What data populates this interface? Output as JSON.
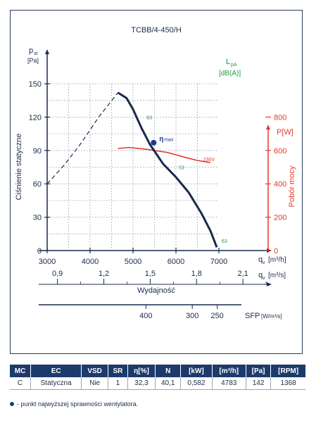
{
  "chart_data": {
    "type": "line",
    "title": "TCBB/4-450/H",
    "x": {
      "label_sym": "q",
      "label_sub": "v",
      "unit": "[m³/h]",
      "min": 3000,
      "max": 7000,
      "ticks": [
        "3000",
        "4000",
        "5000",
        "6000",
        "7000"
      ]
    },
    "x2": {
      "unit": "[m³/s]",
      "ticks": [
        {
          "label": "0,9",
          "value": 0.9
        },
        {
          "label": "1,2",
          "value": 1.2
        },
        {
          "label": "1,5",
          "value": 1.5
        },
        {
          "label": "1,8",
          "value": 1.8
        },
        {
          "label": "2,1",
          "value": 2.1
        }
      ],
      "caption": "Wydajność"
    },
    "y": {
      "label_sym": "p",
      "label_sub": "st",
      "unit": "[Pa]",
      "side_label": "Ciśnienie statyczne",
      "min": 0,
      "max": 150,
      "ticks": [
        "0",
        "30",
        "60",
        "90",
        "120",
        "150"
      ]
    },
    "y2": {
      "label": "P[W]",
      "side_label": "Pobór mocy",
      "min": 0,
      "max": 1000,
      "ticks": [
        "0",
        "200",
        "400",
        "600",
        "800"
      ],
      "color": "#e03a2a"
    },
    "lpa_label": "L",
    "lpa_sub": "pA",
    "lpa_unit": "[dB(A)]",
    "lpa_color": "#1f9a3a",
    "dashed_curve": [
      [
        3000,
        60
      ],
      [
        3400,
        77
      ],
      [
        3800,
        97
      ],
      [
        4200,
        120
      ],
      [
        4650,
        142
      ]
    ],
    "pressure_curve": [
      [
        4650,
        142
      ],
      [
        4850,
        137
      ],
      [
        5000,
        127
      ],
      [
        5200,
        110
      ],
      [
        5400,
        95
      ],
      [
        5700,
        78
      ],
      [
        6000,
        66
      ],
      [
        6300,
        52
      ],
      [
        6600,
        33
      ],
      [
        6800,
        18
      ],
      [
        6950,
        3
      ]
    ],
    "power_curve": [
      [
        4650,
        612
      ],
      [
        4900,
        618
      ],
      [
        5300,
        608
      ],
      [
        5800,
        588
      ],
      [
        6200,
        560
      ],
      [
        6500,
        540
      ],
      [
        6800,
        528
      ]
    ],
    "power_label": "230V",
    "noise_labels": [
      {
        "text": "63",
        "x": 5250,
        "y": 120
      },
      {
        "text": "53",
        "x": 6000,
        "y": 75
      },
      {
        "text": "63",
        "x": 7000,
        "y": 9
      }
    ],
    "best_point": {
      "x": 5480,
      "y": 97,
      "label": "η",
      "label_sub": "max"
    },
    "sfp": {
      "label": "SFP",
      "unit": "[W/m³/s]",
      "ticks": [
        {
          "label": "400",
          "x": 5300
        },
        {
          "label": "300",
          "x": 6380
        },
        {
          "label": "250",
          "x": 6960
        }
      ]
    }
  },
  "table": {
    "headers": [
      "MC",
      "EC",
      "VSD",
      "SR",
      "η[%]",
      "N",
      "[kW]",
      "[m³/h]",
      "[Pa]",
      "[RPM]"
    ],
    "row": [
      "C",
      "Statyczna",
      "Nie",
      "1",
      "32,3",
      "40,1",
      "0,582",
      "4783",
      "142",
      "1368"
    ]
  },
  "footnote": "- punkt najwyższej sprawności wentylatora."
}
